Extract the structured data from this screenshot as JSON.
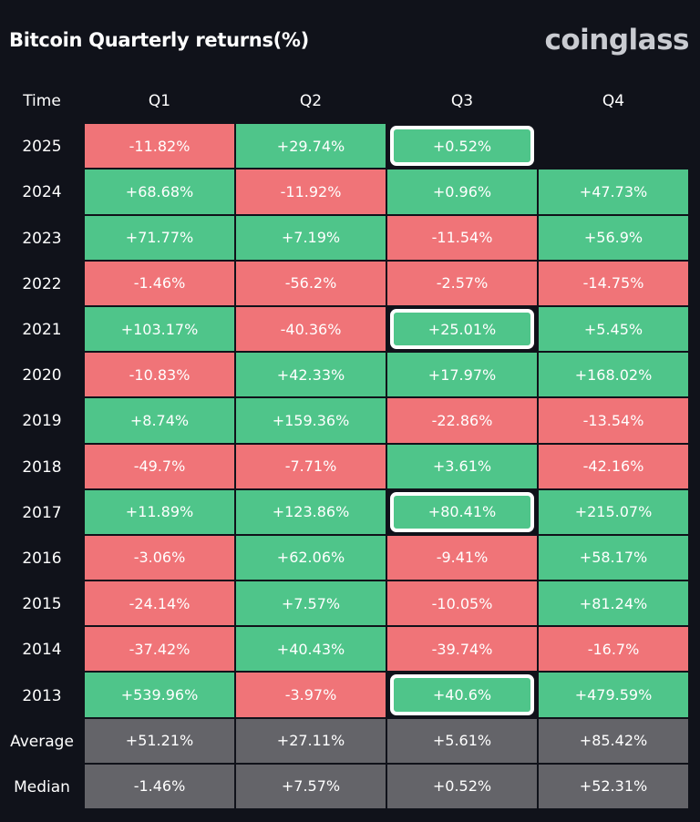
{
  "title": "Bitcoin Quarterly returns(%)",
  "brand": "coinglass",
  "colors": {
    "positive": "#4fc58a",
    "negative": "#f07478",
    "summary": "#646469",
    "background": "#10121a"
  },
  "chart_data": {
    "type": "table",
    "columns": [
      "Time",
      "Q1",
      "Q2",
      "Q3",
      "Q4"
    ],
    "rows": [
      {
        "label": "2025",
        "cells": [
          "-11.82%",
          "+29.74%",
          "+0.52%",
          ""
        ],
        "highlight": [
          2
        ]
      },
      {
        "label": "2024",
        "cells": [
          "+68.68%",
          "-11.92%",
          "+0.96%",
          "+47.73%"
        ],
        "highlight": []
      },
      {
        "label": "2023",
        "cells": [
          "+71.77%",
          "+7.19%",
          "-11.54%",
          "+56.9%"
        ],
        "highlight": []
      },
      {
        "label": "2022",
        "cells": [
          "-1.46%",
          "-56.2%",
          "-2.57%",
          "-14.75%"
        ],
        "highlight": []
      },
      {
        "label": "2021",
        "cells": [
          "+103.17%",
          "-40.36%",
          "+25.01%",
          "+5.45%"
        ],
        "highlight": [
          2
        ]
      },
      {
        "label": "2020",
        "cells": [
          "-10.83%",
          "+42.33%",
          "+17.97%",
          "+168.02%"
        ],
        "highlight": []
      },
      {
        "label": "2019",
        "cells": [
          "+8.74%",
          "+159.36%",
          "-22.86%",
          "-13.54%"
        ],
        "highlight": []
      },
      {
        "label": "2018",
        "cells": [
          "-49.7%",
          "-7.71%",
          "+3.61%",
          "-42.16%"
        ],
        "highlight": []
      },
      {
        "label": "2017",
        "cells": [
          "+11.89%",
          "+123.86%",
          "+80.41%",
          "+215.07%"
        ],
        "highlight": [
          2
        ]
      },
      {
        "label": "2016",
        "cells": [
          "-3.06%",
          "+62.06%",
          "-9.41%",
          "+58.17%"
        ],
        "highlight": []
      },
      {
        "label": "2015",
        "cells": [
          "-24.14%",
          "+7.57%",
          "-10.05%",
          "+81.24%"
        ],
        "highlight": []
      },
      {
        "label": "2014",
        "cells": [
          "-37.42%",
          "+40.43%",
          "-39.74%",
          "-16.7%"
        ],
        "highlight": []
      },
      {
        "label": "2013",
        "cells": [
          "+539.96%",
          "-3.97%",
          "+40.6%",
          "+479.59%"
        ],
        "highlight": [
          2
        ]
      }
    ],
    "summary_rows": [
      {
        "label": "Average",
        "cells": [
          "+51.21%",
          "+27.11%",
          "+5.61%",
          "+85.42%"
        ]
      },
      {
        "label": "Median",
        "cells": [
          "-1.46%",
          "+7.57%",
          "+0.52%",
          "+52.31%"
        ]
      }
    ]
  }
}
